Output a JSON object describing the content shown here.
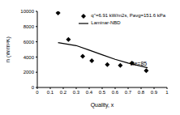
{
  "chart_data": {
    "type": "scatter",
    "x_label": "Quality, x",
    "y_label": "h (W/m²K)",
    "xlim": [
      0,
      1
    ],
    "xticks": [
      0,
      0.1,
      0.2,
      0.3,
      0.4,
      0.5,
      0.6,
      0.7,
      0.8,
      0.9,
      1
    ],
    "ylim": [
      0,
      10000
    ],
    "yticks": [
      0,
      2000,
      4000,
      6000,
      8000,
      10000
    ],
    "grid": false,
    "legend": "upper right",
    "series": [
      {
        "name": "q''=6.91 kW/m2s, Pavg=151.6 kPa",
        "type": "scatter",
        "marker": "diamond",
        "color": "#000000",
        "x": [
          0.16,
          0.24,
          0.35,
          0.42,
          0.54,
          0.64,
          0.73,
          0.84
        ],
        "values": [
          9800,
          6300,
          4100,
          3500,
          3000,
          2900,
          3200,
          2200
        ]
      },
      {
        "name": "Laminar-NBD",
        "type": "line",
        "color": "#000000",
        "line_style": "solid",
        "x": [
          0.16,
          0.3,
          0.4,
          0.5,
          0.6,
          0.7,
          0.85
        ],
        "values": [
          5900,
          5500,
          4900,
          4300,
          3700,
          3200,
          2600
        ]
      }
    ],
    "annotations": [
      {
        "text": "Re=85",
        "x": 0.78,
        "y": 3100
      }
    ]
  }
}
